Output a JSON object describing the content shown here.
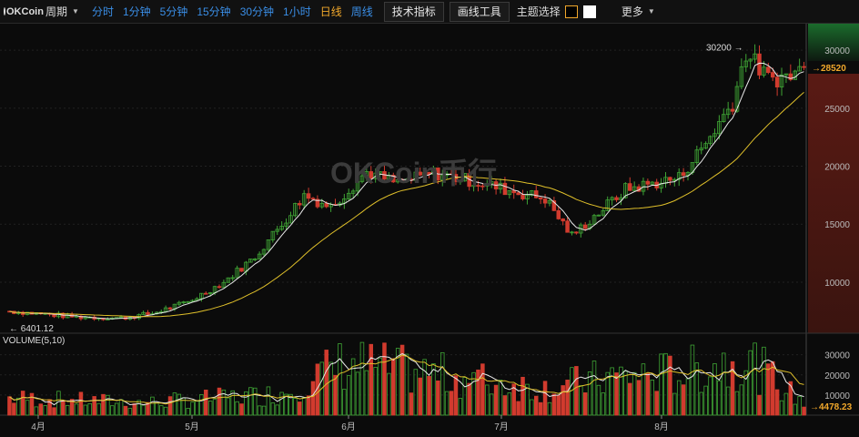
{
  "toolbar": {
    "logo_text": "OKCoin",
    "period_label": "周期",
    "intervals": [
      "分时",
      "1分钟",
      "5分钟",
      "15分钟",
      "30分钟",
      "1小时",
      "日线",
      "周线"
    ],
    "active_interval": "日线",
    "tech_indicator_label": "技术指标",
    "draw_tool_label": "画线工具",
    "theme_label": "主题选择",
    "more_label": "更多"
  },
  "watermark": "OKCoin币行",
  "colors": {
    "up": "#3fa535",
    "down": "#d13b2e",
    "ma5": "#e8e8e8",
    "ma10": "#e0c02a",
    "accent": "#f0a72b",
    "link": "#3a8ee6"
  },
  "chart_data": {
    "type": "candlestick",
    "price_axis": {
      "ticks": [
        30000,
        25000,
        20000,
        15000,
        10000
      ],
      "range": [
        5600,
        31500
      ]
    },
    "volume_axis": {
      "ticks": [
        30000,
        20000,
        10000
      ],
      "range": [
        0,
        38000
      ]
    },
    "x_ticks": [
      "4月",
      "5月",
      "6月",
      "7月",
      "8月"
    ],
    "high_marker": "30200",
    "low_marker": "6401.12",
    "last_price": "28520",
    "volume_label": "VOLUME(5,10)",
    "last_volume": "4478.23",
    "series": [
      "MA5",
      "MA10"
    ],
    "trend": [
      [
        0,
        7500
      ],
      [
        15,
        7000
      ],
      [
        25,
        6900
      ],
      [
        32,
        7300
      ],
      [
        40,
        8300
      ],
      [
        48,
        10000
      ],
      [
        55,
        12200
      ],
      [
        62,
        15500
      ],
      [
        66,
        17500
      ],
      [
        72,
        16500
      ],
      [
        80,
        19500
      ],
      [
        87,
        18500
      ],
      [
        95,
        19400
      ],
      [
        104,
        18700
      ],
      [
        112,
        17900
      ],
      [
        120,
        17200
      ],
      [
        126,
        14000
      ],
      [
        132,
        16000
      ],
      [
        138,
        18000
      ],
      [
        144,
        18500
      ],
      [
        150,
        19000
      ],
      [
        156,
        22000
      ],
      [
        162,
        25500
      ],
      [
        165,
        29800
      ],
      [
        170,
        27500
      ],
      [
        175,
        27800
      ],
      [
        178,
        28520
      ]
    ],
    "volume_profile": [
      [
        0,
        9000
      ],
      [
        30,
        6500
      ],
      [
        60,
        11000
      ],
      [
        75,
        27000
      ],
      [
        100,
        20000
      ],
      [
        120,
        14000
      ],
      [
        135,
        20000
      ],
      [
        150,
        22000
      ],
      [
        165,
        30000
      ],
      [
        178,
        6000
      ]
    ]
  }
}
